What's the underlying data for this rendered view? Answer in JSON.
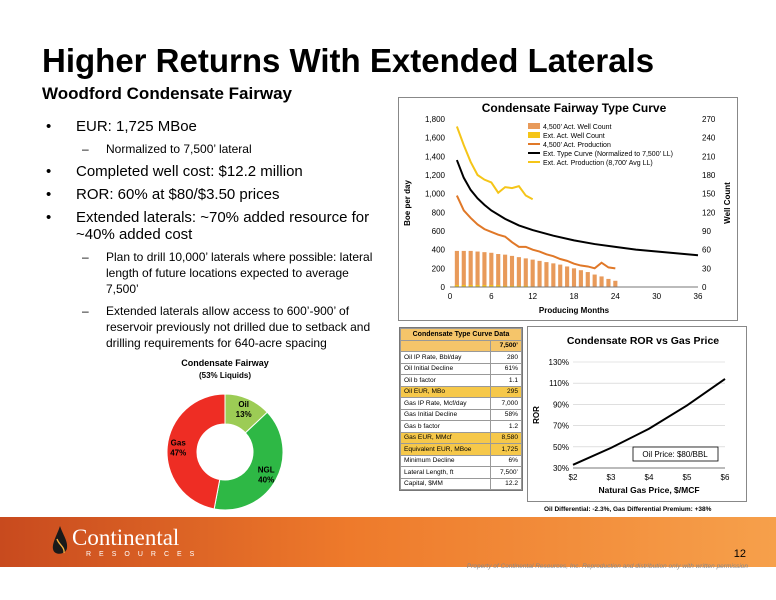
{
  "title": "Higher Returns With Extended Laterals",
  "subtitle": "Woodford Condensate Fairway",
  "bullets": [
    {
      "text": "EUR: 1,725 MBoe",
      "sub": [
        "Normalized to 7,500’ lateral"
      ]
    },
    {
      "text": "Completed well cost: $12.2 million",
      "sub": []
    },
    {
      "text": "ROR: 60% at $80/$3.50 prices",
      "sub": []
    },
    {
      "text": "Extended laterals: ~70% added resource for ~40% added cost",
      "sub": [
        "Plan to drill 10,000’ laterals where possible: lateral length of future locations expected to average 7,500’",
        "Extended laterals allow access to 600’-900’ of reservoir previously not drilled due to setback and drilling requirements for 640-acre spacing"
      ]
    }
  ],
  "colors": {
    "orange": "#f0a040",
    "dark_orange": "#e07828",
    "black_line": "#000000",
    "gold": "#f5c518",
    "green": "#2eb845",
    "light_green": "#9ccc55",
    "red": "#ee2d24"
  },
  "chart_data": [
    {
      "type": "line",
      "title": "Condensate Fairway Type Curve",
      "xlabel": "Producing Months",
      "ylabel": "Boe per day",
      "y2label": "Well Count",
      "xlim": [
        0,
        36
      ],
      "ylim": [
        0,
        1800
      ],
      "y2lim": [
        0,
        270
      ],
      "xticks": [
        "0",
        "6",
        "12",
        "18",
        "24",
        "30",
        "36"
      ],
      "yticks": [
        "0",
        "200",
        "400",
        "600",
        "800",
        "1,000",
        "1,200",
        "1,400",
        "1,600",
        "1,800"
      ],
      "y2ticks": [
        "0",
        "30",
        "60",
        "90",
        "120",
        "150",
        "180",
        "210",
        "240",
        "270"
      ],
      "legend_position": "top-right",
      "legend": [
        "4,500’ Act. Well Count",
        "Ext. Act. Well Count",
        "4,500’ Act. Production",
        "Ext. Type Curve (Normalized to 7,500’ LL)",
        "Ext. Act. Production (8,700’ Avg LL)"
      ],
      "series": [
        {
          "name": "4,500’ Act. Well Count",
          "kind": "bar",
          "axis": "right",
          "color": "#e89a5a",
          "x": [
            1,
            2,
            3,
            4,
            5,
            6,
            7,
            8,
            9,
            10,
            11,
            12,
            13,
            14,
            15,
            16,
            17,
            18,
            19,
            20,
            21,
            22,
            23,
            24
          ],
          "values": [
            58,
            58,
            58,
            57,
            56,
            55,
            53,
            52,
            50,
            48,
            46,
            44,
            42,
            40,
            38,
            36,
            33,
            30,
            27,
            24,
            20,
            17,
            13,
            10
          ]
        },
        {
          "name": "Ext. Act. Well Count",
          "kind": "bar",
          "axis": "right",
          "color": "#f5c518",
          "x": [
            1,
            2,
            3,
            4,
            5,
            6,
            7,
            8,
            9,
            10,
            11,
            12
          ],
          "values": [
            3,
            3,
            3,
            3,
            3,
            3,
            3,
            2,
            2,
            2,
            2,
            1
          ]
        },
        {
          "name": "4,500’ Act. Production",
          "kind": "line",
          "axis": "left",
          "color": "#e07828",
          "x": [
            1,
            2,
            3,
            4,
            5,
            6,
            7,
            8,
            9,
            10,
            11,
            12,
            13,
            14,
            15,
            16,
            17,
            18,
            19,
            20,
            21,
            22,
            23,
            24
          ],
          "values": [
            980,
            820,
            740,
            670,
            620,
            590,
            560,
            540,
            480,
            430,
            430,
            400,
            380,
            350,
            330,
            300,
            280,
            250,
            230,
            220,
            200,
            260,
            210,
            200
          ]
        },
        {
          "name": "Ext. Type Curve (Normalized to 7,500’ LL)",
          "kind": "line",
          "axis": "left",
          "color": "#000000",
          "x": [
            1,
            2,
            3,
            4,
            5,
            6,
            8,
            10,
            12,
            15,
            18,
            21,
            24,
            27,
            30,
            33,
            36
          ],
          "values": [
            1360,
            1170,
            1040,
            950,
            880,
            820,
            730,
            660,
            610,
            550,
            500,
            460,
            430,
            400,
            380,
            360,
            340
          ]
        },
        {
          "name": "Ext. Act. Production (8,700’ Avg LL)",
          "kind": "line",
          "axis": "left",
          "color": "#f5c518",
          "x": [
            1,
            2,
            3,
            4,
            5,
            6,
            7,
            8,
            9,
            10,
            11,
            12
          ],
          "values": [
            1720,
            1520,
            1340,
            1200,
            1150,
            1120,
            1010,
            1070,
            1060,
            1080,
            980,
            940
          ]
        }
      ]
    },
    {
      "type": "line",
      "title": "Condensate ROR vs Gas Price",
      "xlabel": "Natural Gas Price, $/MCF",
      "ylabel": "ROR",
      "xlim": [
        2,
        6
      ],
      "ylim": [
        30,
        130
      ],
      "xticks": [
        "$2",
        "$3",
        "$4",
        "$5",
        "$6"
      ],
      "yticks": [
        "30%",
        "50%",
        "70%",
        "90%",
        "110%",
        "130%"
      ],
      "annotation": "Oil Price: $80/BBL",
      "note": "Oil Differential: -2.3%, Gas Differential Premium: +38%",
      "series": [
        {
          "name": "ROR",
          "x": [
            2,
            3,
            4,
            5,
            6
          ],
          "values": [
            33,
            49,
            67,
            89,
            114
          ]
        }
      ]
    },
    {
      "type": "pie",
      "title": "Condensate Fairway",
      "subtitle": "(53% Liquids)",
      "categories": [
        "Oil",
        "NGL",
        "Gas"
      ],
      "values": [
        13,
        40,
        47
      ],
      "labels": [
        "13%",
        "40%",
        "47%"
      ],
      "colors": [
        "#9ccc55",
        "#2eb845",
        "#ee2d24"
      ]
    },
    {
      "type": "table",
      "title": "Condensate Type Curve Data",
      "column_header": "7,500’",
      "rows": [
        {
          "label": "Oil IP Rate, Bbl/day",
          "value": "280",
          "highlight": false
        },
        {
          "label": "Oil Initial Decline",
          "value": "61%",
          "highlight": false
        },
        {
          "label": "Oil b factor",
          "value": "1.1",
          "highlight": false
        },
        {
          "label": "Oil EUR, MBo",
          "value": "295",
          "highlight": true
        },
        {
          "label": "Gas IP Rate, Mcf/day",
          "value": "7,000",
          "highlight": false
        },
        {
          "label": "Gas Initial Decline",
          "value": "58%",
          "highlight": false
        },
        {
          "label": "Gas b factor",
          "value": "1.2",
          "highlight": false
        },
        {
          "label": "Gas EUR, MMcf",
          "value": "8,580",
          "highlight": true
        },
        {
          "label": "Equivalent EUR, MBoe",
          "value": "1,725",
          "highlight": true
        },
        {
          "label": "Minimum Decline",
          "value": "6%",
          "highlight": false
        },
        {
          "label": "Lateral Length, ft",
          "value": "7,500’",
          "highlight": false
        },
        {
          "label": "Capital, $MM",
          "value": "12.2",
          "highlight": false
        }
      ]
    }
  ],
  "logo": {
    "name": "Continental",
    "tagline": "RESOURCES"
  },
  "page_number": "12",
  "property_note": "Property of Continental Resources, Inc. Reproduction and distribution only with written permission"
}
